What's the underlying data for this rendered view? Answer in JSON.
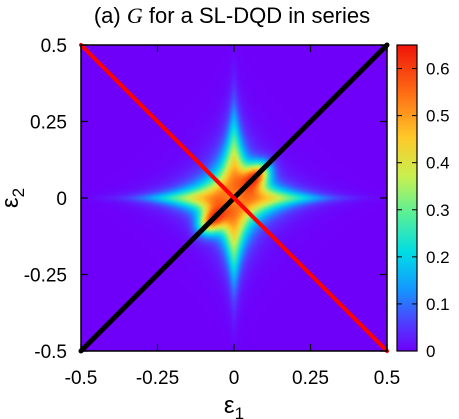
{
  "chart_data": {
    "type": "heatmap",
    "title": {
      "prefix": "(a) ",
      "variable": "G",
      "suffix": " for a SL-DQD in series"
    },
    "xlabel": {
      "symbol": "ε",
      "subscript": "1"
    },
    "ylabel": {
      "symbol": "ε",
      "subscript": "2"
    },
    "xlim": [
      -0.5,
      0.5
    ],
    "ylim": [
      -0.5,
      0.5
    ],
    "x_ticks": [
      "-0.5",
      "-0.25",
      "0",
      "0.25",
      "0.5"
    ],
    "y_ticks": [
      "-0.5",
      "-0.25",
      "0",
      "0.25",
      "0.5"
    ],
    "colorbar": {
      "min": 0,
      "max": 0.65,
      "ticks": [
        "0",
        "0.1",
        "0.2",
        "0.3",
        "0.4",
        "0.5",
        "0.6"
      ],
      "tick_values": [
        0,
        0.1,
        0.2,
        0.3,
        0.4,
        0.5,
        0.6
      ],
      "colormap": "rainbow (purple → blue → cyan → green → yellow → orange → red)"
    },
    "lines": [
      {
        "name": "ε1 = ε2",
        "color": "#000000",
        "from": [
          -0.5,
          -0.5
        ],
        "to": [
          0.5,
          0.5
        ]
      },
      {
        "name": "ε1 = -ε2",
        "color": "#ff0000",
        "from": [
          -0.5,
          0.5
        ],
        "to": [
          0.5,
          -0.5
        ]
      }
    ],
    "features": {
      "background_value": 0.0,
      "peak_value": 0.63,
      "peak_locations": [
        [
          0.07,
          0.07
        ],
        [
          -0.07,
          -0.07
        ]
      ],
      "center_value": 0.42
    },
    "grid": false,
    "legend": "none"
  }
}
